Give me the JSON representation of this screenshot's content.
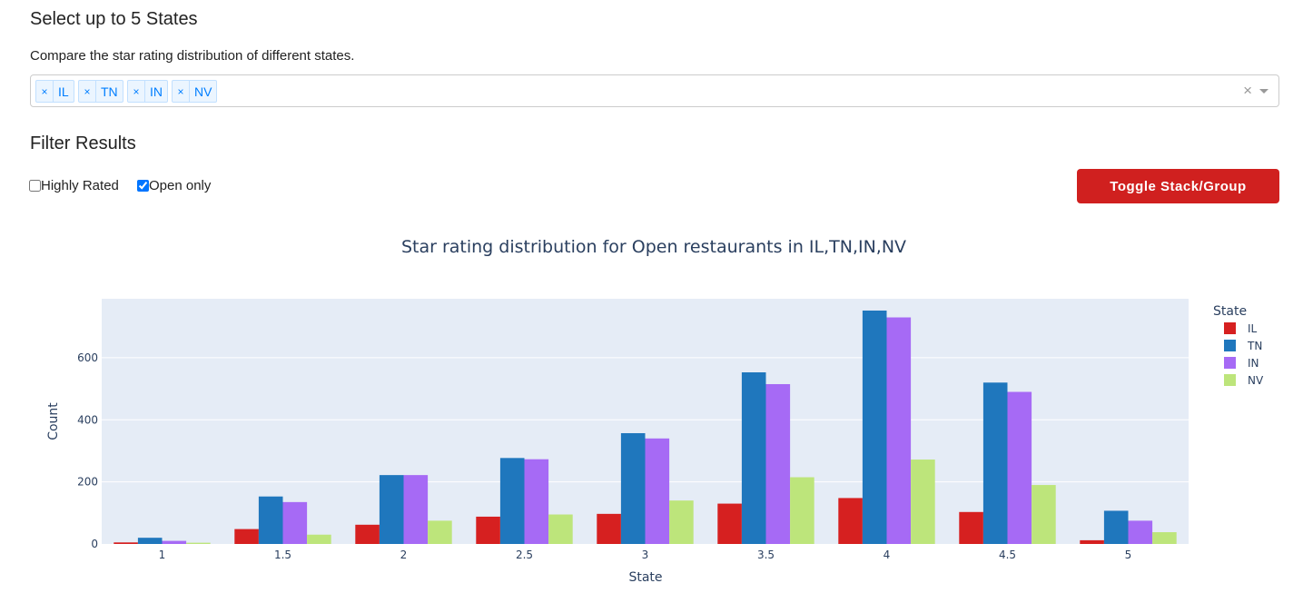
{
  "header": {
    "title": "Select up to 5 States",
    "description": "Compare the star rating distribution of different states."
  },
  "state_select": {
    "tags": [
      {
        "label": "IL",
        "remove": "×"
      },
      {
        "label": "TN",
        "remove": "×"
      },
      {
        "label": "IN",
        "remove": "×"
      },
      {
        "label": "NV",
        "remove": "×"
      }
    ],
    "clear": "×"
  },
  "filters": {
    "title": "Filter Results",
    "highly_rated": {
      "label": "Highly Rated",
      "checked": false
    },
    "open_only": {
      "label": "Open only",
      "checked": true
    }
  },
  "toggle_button": {
    "label": "Toggle Stack/Group",
    "color": "#d0201f"
  },
  "chart_data": {
    "type": "bar",
    "title": "Star rating distribution for Open restaurants in IL,TN,IN,NV",
    "xlabel": "State",
    "ylabel": "Count",
    "categories": [
      "1",
      "1.5",
      "2",
      "2.5",
      "3",
      "3.5",
      "4",
      "4.5",
      "5"
    ],
    "yticks": [
      0,
      200,
      400,
      600
    ],
    "ylim": [
      0,
      790
    ],
    "legend_title": "State",
    "legend_position": "right",
    "grid": true,
    "series": [
      {
        "name": "IL",
        "color": "#d62020",
        "values": [
          5,
          48,
          62,
          88,
          97,
          130,
          148,
          103,
          12
        ]
      },
      {
        "name": "TN",
        "color": "#1f77bd",
        "values": [
          20,
          153,
          222,
          277,
          357,
          553,
          752,
          520,
          107
        ]
      },
      {
        "name": "IN",
        "color": "#a66af5",
        "values": [
          10,
          135,
          222,
          273,
          340,
          515,
          730,
          490,
          75
        ]
      },
      {
        "name": "NV",
        "color": "#bde57b",
        "values": [
          4,
          30,
          75,
          95,
          140,
          215,
          272,
          190,
          38
        ]
      }
    ]
  }
}
